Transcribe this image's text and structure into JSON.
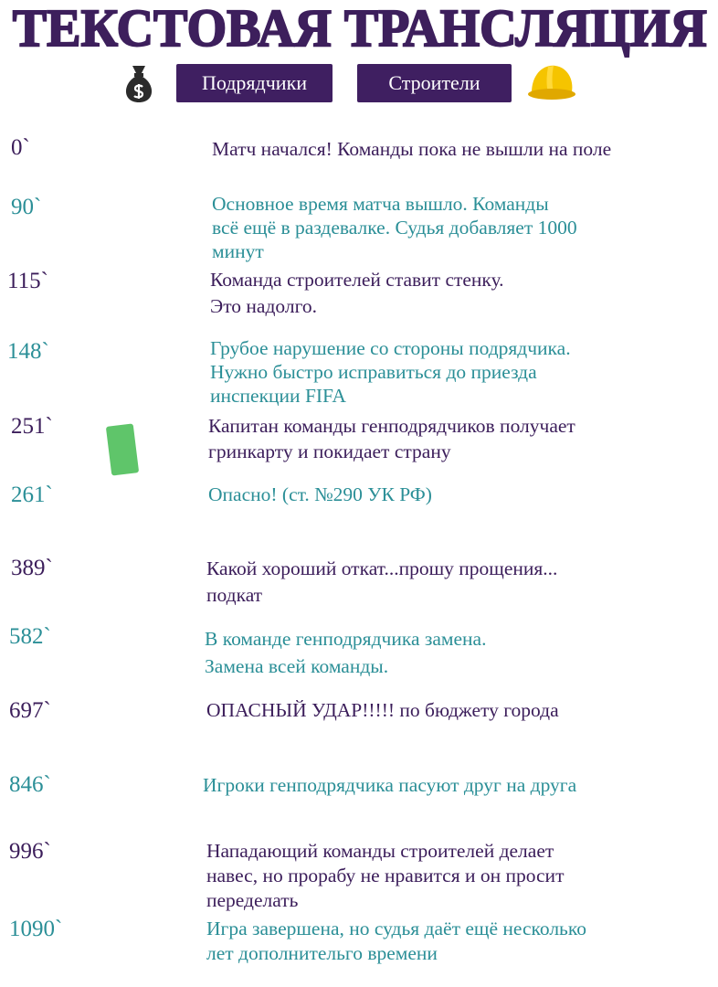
{
  "header": {
    "title": "ТЕКСТОВАЯ ТРАНСЛЯЦИЯ",
    "teams": [
      {
        "label": "Подрядчики",
        "icon": "money-bag-icon"
      },
      {
        "label": "Строители",
        "icon": "hard-hat-icon"
      }
    ]
  },
  "colors": {
    "primary": "#3d1f5c",
    "secondary": "#2b8f97",
    "green_card": "#5fc56a"
  },
  "events": [
    {
      "time": "0`",
      "text": "Матч начался! Команды пока не вышли на поле",
      "color": "purple"
    },
    {
      "time": "90`",
      "text": "Основное время матча вышло. Команды\nвсё ещё в раздевалке. Судья добавляет 1000\nминут",
      "color": "teal"
    },
    {
      "time": "115`",
      "text": "Команда строителей ставит стенку.\nЭто надолго.",
      "color": "purple"
    },
    {
      "time": "148`",
      "text": "Грубое нарушение со стороны подрядчика.\nНужно быстро исправиться до приезда\nинспекции FIFA",
      "color": "teal"
    },
    {
      "time": "251`",
      "text": "Капитан команды генподрядчиков получает\nгринкарту и покидает страну",
      "color": "purple",
      "icon": "green-card-icon"
    },
    {
      "time": "261`",
      "text": "Опасно! (ст. №290 УК РФ)",
      "color": "teal"
    },
    {
      "time": "389`",
      "text": "Какой хороший откат...прошу прощения...\nподкат",
      "color": "purple"
    },
    {
      "time": "582`",
      "text": "В команде генподрядчика замена.\nЗамена всей команды.",
      "color": "teal"
    },
    {
      "time": "697`",
      "text": "ОПАСНЫЙ УДАР!!!!! по бюджету города",
      "color": "purple"
    },
    {
      "time": "846`",
      "text": "Игроки генподрядчика пасуют друг на друга",
      "color": "teal"
    },
    {
      "time": "996`",
      "text": "Нападающий команды строителей делает\nнавес, но прорабу не нравится и он просит\nпеределать",
      "color": "purple"
    },
    {
      "time": "1090`",
      "text": "Игра завершена, но судья даёт ещё несколько\nлет дополнительго времени",
      "color": "teal"
    }
  ]
}
